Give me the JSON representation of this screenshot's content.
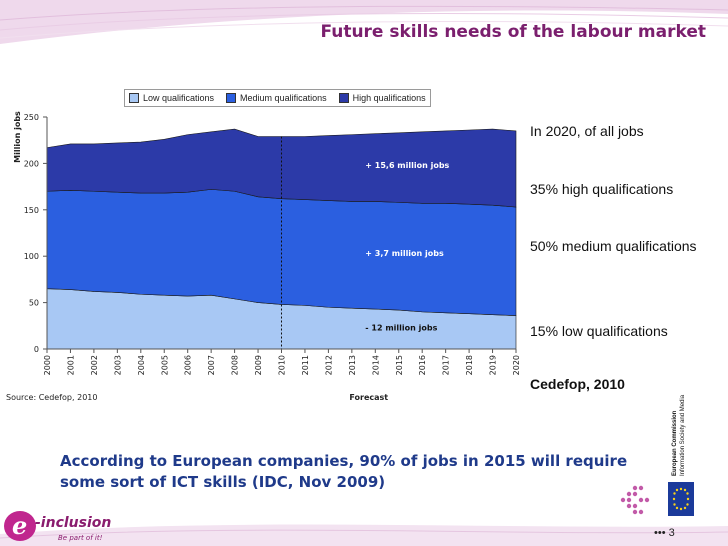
{
  "slide": {
    "title": "Future skills needs of the labour market",
    "source": "Source: Cedefop, 2010",
    "conclusion": "According to European companies, 90% of jobs in 2015 will require some sort of ICT skills (IDC, Nov 2009)",
    "page_number": "3",
    "page_dots": "•••"
  },
  "side_panel": {
    "intro": "In 2020, of all jobs",
    "high": "35% high qualifications",
    "medium": "50% medium qualifications",
    "low": "15% low qualifications",
    "citation": "Cedefop, 2010"
  },
  "logos": {
    "ec_line1": "European Commission",
    "ec_line2": "Information Society and Media",
    "einclusion_e": "e",
    "einclusion_name": "-inclusion",
    "einclusion_tagline": "Be part of it!"
  },
  "colors": {
    "title": "#7b1f6e",
    "low": "#a8c8f4",
    "medium": "#2b5fe0",
    "high": "#2c3aa8",
    "conclusion": "#1f3a8a",
    "header_band": "#e7c6e4"
  },
  "chart_data": {
    "type": "area",
    "stacked": true,
    "ylabel": "Million jobs",
    "xlabel": "Forecast",
    "ylim": [
      0,
      250
    ],
    "yticks": [
      0,
      50,
      100,
      150,
      200,
      250
    ],
    "x": [
      "2000",
      "2001",
      "2002",
      "2003",
      "2004",
      "2005",
      "2006",
      "2007",
      "2008",
      "2009",
      "2010",
      "2011",
      "2012",
      "2013",
      "2014",
      "2015",
      "2016",
      "2017",
      "2018",
      "2019",
      "2020"
    ],
    "forecast_start": "2010",
    "legend_position": "top",
    "series": [
      {
        "name": "Low qualifications",
        "color": "#a8c8f4",
        "values": [
          65,
          64,
          62,
          61,
          59,
          58,
          57,
          58,
          54,
          50,
          48,
          47,
          45,
          44,
          43,
          42,
          40,
          39,
          38,
          37,
          36
        ]
      },
      {
        "name": "Medium qualifications",
        "color": "#2b5fe0",
        "values": [
          105,
          107,
          108,
          108,
          109,
          110,
          112,
          114,
          116,
          114,
          114,
          114,
          115,
          115,
          116,
          116,
          117,
          118,
          118,
          118,
          117
        ]
      },
      {
        "name": "High qualifications",
        "color": "#2c3aa8",
        "values": [
          47,
          50,
          51,
          53,
          55,
          58,
          62,
          62,
          67,
          65,
          67,
          68,
          70,
          72,
          73,
          75,
          77,
          78,
          80,
          82,
          82
        ]
      }
    ],
    "annotations": [
      {
        "text": "+ 15,6 million jobs",
        "x": "2014",
        "y": 195
      },
      {
        "text": "+ 3,7 million jobs",
        "x": "2014",
        "y": 100
      },
      {
        "text": "- 12 million jobs",
        "x": "2014",
        "y": 20
      }
    ]
  }
}
